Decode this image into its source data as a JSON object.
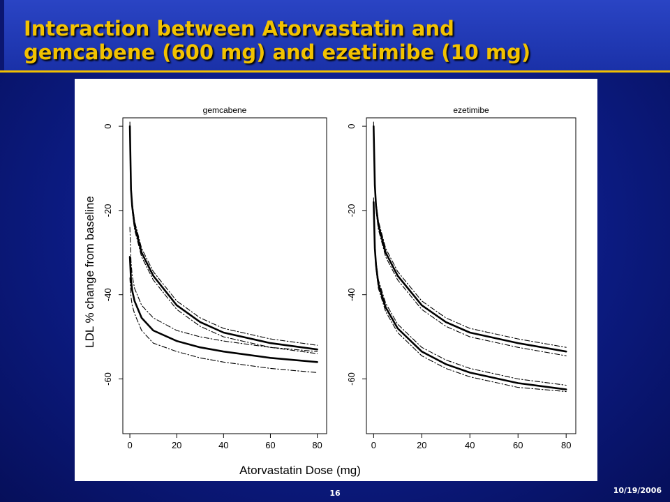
{
  "slide": {
    "title_line1": "Interaction between Atorvastatin and",
    "title_line2": "gemcabene (600 mg) and ezetimibe (10 mg)",
    "slide_number": "16",
    "date": "10/19/2006",
    "colors": {
      "background": "#0d1e8c",
      "title_text": "#f2c200",
      "title_rule": "#f2c000"
    }
  },
  "chart_data": {
    "type": "line",
    "xlabel": "Atorvastatin Dose (mg)",
    "ylabel": "LDL % change from baseline",
    "xlim": [
      -3,
      84
    ],
    "ylim": [
      -73,
      2
    ],
    "x_ticks": [
      0,
      20,
      40,
      60,
      80
    ],
    "y_ticks": [
      0,
      -20,
      -40,
      -60
    ],
    "grid": false,
    "panels": [
      {
        "title": "gemcabene",
        "series": [
          {
            "style": "solid",
            "x": [
              0,
              0.5,
              1,
              2,
              5,
              10,
              20,
              30,
              40,
              60,
              80
            ],
            "values": [
              0,
              -15,
              -19,
              -23.5,
              -30,
              -35.5,
              -42.5,
              -46.5,
              -49,
              -51.5,
              -53
            ]
          },
          {
            "style": "dashdot",
            "x": [
              0,
              0.5,
              1,
              2,
              5,
              10,
              20,
              30,
              40,
              60,
              80
            ],
            "values": [
              1,
              -14,
              -18,
              -22.5,
              -29,
              -34.5,
              -41.5,
              -45.5,
              -48,
              -50.5,
              -52
            ]
          },
          {
            "style": "dashdot",
            "x": [
              0,
              0.5,
              1,
              2,
              5,
              10,
              20,
              30,
              40,
              60,
              80
            ],
            "values": [
              -1,
              -16,
              -20,
              -24.5,
              -31,
              -36.5,
              -43.5,
              -47.5,
              -50,
              -52.5,
              -54
            ]
          },
          {
            "style": "solid",
            "x": [
              0,
              0.5,
              1,
              2,
              5,
              10,
              20,
              30,
              40,
              60,
              80
            ],
            "values": [
              -31,
              -36.5,
              -39,
              -41.5,
              -45.5,
              -48.5,
              -51,
              -52.5,
              -53.5,
              -55,
              -56
            ]
          },
          {
            "style": "dashdot",
            "x": [
              0,
              0.5,
              1,
              2,
              5,
              10,
              20,
              30,
              40,
              60,
              80
            ],
            "values": [
              -24,
              -32,
              -35.5,
              -38.5,
              -42.5,
              -45.5,
              -48.5,
              -50,
              -51,
              -52.5,
              -53.5
            ]
          },
          {
            "style": "dashdot",
            "x": [
              0,
              0.5,
              1,
              2,
              5,
              10,
              20,
              30,
              40,
              60,
              80
            ],
            "values": [
              -36,
              -40.5,
              -42.5,
              -44.5,
              -48.5,
              -51.5,
              -53.5,
              -55,
              -56,
              -57.5,
              -58.5
            ]
          }
        ]
      },
      {
        "title": "ezetimibe",
        "series": [
          {
            "style": "solid",
            "x": [
              0,
              0.5,
              1,
              2,
              5,
              10,
              20,
              30,
              40,
              60,
              80
            ],
            "values": [
              0,
              -14,
              -19,
              -23.5,
              -30,
              -35.5,
              -42.5,
              -46.5,
              -49,
              -51.5,
              -53.5
            ]
          },
          {
            "style": "dashdot",
            "x": [
              0,
              0.5,
              1,
              2,
              5,
              10,
              20,
              30,
              40,
              60,
              80
            ],
            "values": [
              1,
              -13,
              -18,
              -22.5,
              -29,
              -34.5,
              -41.5,
              -45.5,
              -48,
              -50.5,
              -52.5
            ]
          },
          {
            "style": "dashdot",
            "x": [
              0,
              0.5,
              1,
              2,
              5,
              10,
              20,
              30,
              40,
              60,
              80
            ],
            "values": [
              -1,
              -15,
              -20,
              -24.5,
              -31,
              -36.5,
              -43.5,
              -47.5,
              -50,
              -52.5,
              -54.5
            ]
          },
          {
            "style": "solid",
            "x": [
              0,
              0.5,
              1,
              2,
              5,
              10,
              20,
              30,
              40,
              60,
              80
            ],
            "values": [
              -18,
              -29,
              -33,
              -37.5,
              -43,
              -48,
              -53.5,
              -56.5,
              -58.5,
              -61,
              -62.5
            ]
          },
          {
            "style": "dashdot",
            "x": [
              0,
              0.5,
              1,
              2,
              5,
              10,
              20,
              30,
              40,
              60,
              80
            ],
            "values": [
              -17,
              -28,
              -32,
              -36.5,
              -42,
              -47,
              -52.5,
              -55.5,
              -57.5,
              -60,
              -61.5
            ]
          },
          {
            "style": "dashdot",
            "x": [
              0,
              0.5,
              1,
              2,
              5,
              10,
              20,
              30,
              40,
              60,
              80
            ],
            "values": [
              -19,
              -30,
              -34,
              -38.5,
              -44,
              -49,
              -54.5,
              -57.5,
              -59.5,
              -62,
              -63
            ]
          }
        ]
      }
    ]
  }
}
